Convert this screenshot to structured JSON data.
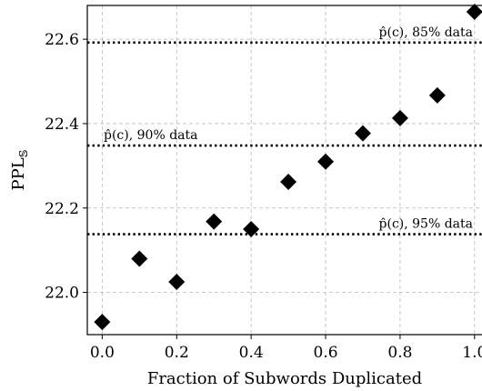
{
  "chart_data": {
    "type": "scatter",
    "title": "",
    "xlabel": "Fraction of Subwords Duplicated",
    "ylabel": "PPL",
    "ylabel_subscript": "𝕊",
    "xlim": [
      -0.04,
      1.02
    ],
    "ylim": [
      21.9,
      22.68
    ],
    "x_ticks": [
      0.0,
      0.2,
      0.4,
      0.6,
      0.8,
      1.0
    ],
    "x_tick_labels": [
      "0.0",
      "0.2",
      "0.4",
      "0.6",
      "0.8",
      "1.0"
    ],
    "y_ticks": [
      22.0,
      22.2,
      22.4,
      22.6
    ],
    "y_tick_labels": [
      "22.0",
      "22.2",
      "22.4",
      "22.6"
    ],
    "grid": true,
    "marker": "diamond",
    "marker_color": "#000000",
    "points": [
      {
        "x": 0.0,
        "y": 21.93
      },
      {
        "x": 0.1,
        "y": 22.08
      },
      {
        "x": 0.2,
        "y": 22.025
      },
      {
        "x": 0.3,
        "y": 22.168
      },
      {
        "x": 0.4,
        "y": 22.15
      },
      {
        "x": 0.5,
        "y": 22.262
      },
      {
        "x": 0.6,
        "y": 22.31
      },
      {
        "x": 0.7,
        "y": 22.377
      },
      {
        "x": 0.8,
        "y": 22.413
      },
      {
        "x": 0.9,
        "y": 22.467
      },
      {
        "x": 1.0,
        "y": 22.665
      }
    ],
    "reference_lines": [
      {
        "y": 22.592,
        "label": "p̂(c), 85% data",
        "label_anchor": "right"
      },
      {
        "y": 22.348,
        "label": "p̂(c), 90% data",
        "label_anchor": "left"
      },
      {
        "y": 22.138,
        "label": "p̂(c), 95% data",
        "label_anchor": "right"
      }
    ]
  }
}
